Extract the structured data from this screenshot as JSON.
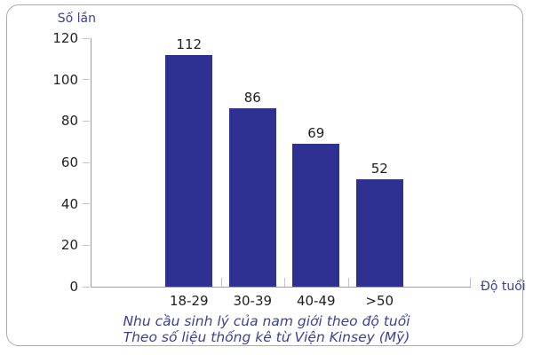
{
  "chart_data": {
    "type": "bar",
    "categories": [
      "18-29",
      "30-39",
      "40-49",
      ">50"
    ],
    "values": [
      112,
      86,
      69,
      52
    ],
    "title": "Nhu cầu sinh lý của nam giới theo độ tuổi",
    "subtitle": "Theo số liệu thống kê từ Viện Kinsey (Mỹ)",
    "xlabel": "Độ tuổi",
    "ylabel": "Số lần",
    "ylim": [
      0,
      120
    ],
    "yticks": [
      0,
      20,
      40,
      60,
      80,
      100,
      120
    ],
    "grid": false,
    "legend": "none",
    "colors": {
      "bar": "#2e3192",
      "axis_line": "#9e9e9e",
      "tick_mark": "#c6c6c6",
      "tick_label": "#222222",
      "value_label": "#1f1f1f",
      "accent_text": "#3c4195",
      "frame_border": "#ababab"
    }
  }
}
